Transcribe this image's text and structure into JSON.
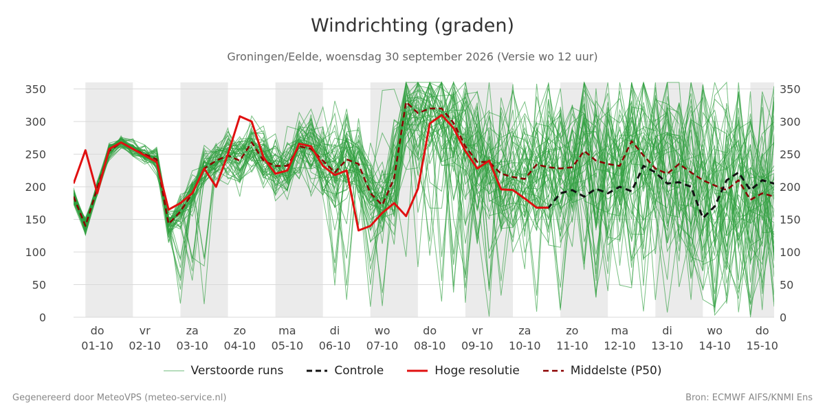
{
  "title": "Windrichting (graden)",
  "subtitle": "Groningen/Eelde, woensdag 30 september 2026 (Versie wo 12 uur)",
  "footer": {
    "left": "Gegenereerd door MeteoVPS (meteo-service.nl)",
    "right": "Bron: ECMWF AIFS/KNMI Ens"
  },
  "colors": {
    "members": "#2e9e3e",
    "control": "#111111",
    "hres": "#e01010",
    "median": "#8b0000",
    "weekend_band": "#ebebeb",
    "grid": "#d9d9d9"
  },
  "chart_data": {
    "type": "line",
    "x_unit": "days since start of 01-10 2026 (00 UTC)",
    "xlim": [
      -0.25,
      14.5
    ],
    "ylim": [
      0,
      360
    ],
    "yticks": [
      0,
      50,
      100,
      150,
      200,
      250,
      300,
      350
    ],
    "grid": true,
    "x_ticks": [
      {
        "day": "do",
        "date": "01-10"
      },
      {
        "day": "vr",
        "date": "02-10"
      },
      {
        "day": "za",
        "date": "03-10"
      },
      {
        "day": "zo",
        "date": "04-10"
      },
      {
        "day": "ma",
        "date": "05-10"
      },
      {
        "day": "di",
        "date": "06-10"
      },
      {
        "day": "wo",
        "date": "07-10"
      },
      {
        "day": "do",
        "date": "08-10"
      },
      {
        "day": "vr",
        "date": "09-10"
      },
      {
        "day": "za",
        "date": "10-10"
      },
      {
        "day": "zo",
        "date": "11-10"
      },
      {
        "day": "ma",
        "date": "12-10"
      },
      {
        "day": "di",
        "date": "13-10"
      },
      {
        "day": "wo",
        "date": "14-10"
      },
      {
        "day": "do",
        "date": "15-10"
      }
    ],
    "legend": [
      "Verstoorde runs",
      "Controle",
      "Hoge resolutie",
      "Middelste (P50)"
    ],
    "series": [
      {
        "name": "Hoge resolutie",
        "x": [
          -0.25,
          0,
          0.25,
          0.5,
          0.75,
          1,
          1.25,
          1.5,
          1.75,
          2,
          2.25,
          2.5,
          2.75,
          3,
          3.25,
          3.5,
          3.75,
          4,
          4.25,
          4.5,
          4.75,
          5,
          5.25,
          5.5,
          5.75,
          6,
          6.25,
          6.5,
          6.75,
          7,
          7.25,
          7.5,
          7.75,
          8,
          8.25,
          8.5,
          8.75,
          9,
          9.25,
          9.5,
          9.75
        ],
        "y": [
          205,
          256,
          190,
          258,
          268,
          258,
          248,
          238,
          165,
          175,
          190,
          228,
          200,
          250,
          308,
          300,
          245,
          220,
          225,
          266,
          262,
          232,
          218,
          225,
          133,
          140,
          160,
          175,
          155,
          197,
          297,
          310,
          290,
          255,
          228,
          240,
          196,
          195,
          182,
          168,
          168
        ]
      },
      {
        "name": "Controle",
        "x": [
          9.5,
          9.75,
          10,
          10.25,
          10.5,
          10.75,
          11,
          11.25,
          11.5,
          11.75,
          12,
          12.25,
          12.5,
          12.75,
          13,
          13.25,
          13.5,
          13.75,
          14,
          14.25,
          14.5
        ],
        "y": [
          168,
          168,
          190,
          195,
          185,
          197,
          190,
          200,
          193,
          232,
          222,
          205,
          207,
          200,
          152,
          170,
          210,
          222,
          195,
          210,
          205
        ]
      },
      {
        "name": "Middelste (P50)",
        "x": [
          -0.25,
          0,
          0.25,
          0.5,
          0.75,
          1,
          1.25,
          1.5,
          1.75,
          2,
          2.25,
          2.5,
          2.75,
          3,
          3.25,
          3.5,
          3.75,
          4,
          4.25,
          4.5,
          4.75,
          5,
          5.25,
          5.5,
          5.75,
          6,
          6.25,
          6.5,
          6.75,
          7,
          7.25,
          7.5,
          7.75,
          8,
          8.25,
          8.5,
          8.75,
          9,
          9.25,
          9.5,
          9.75,
          10,
          10.25,
          10.5,
          10.75,
          11,
          11.25,
          11.5,
          11.75,
          12,
          12.25,
          12.5,
          12.75,
          13,
          13.25,
          13.5,
          13.75,
          14,
          14.25,
          14.5
        ],
        "y": [
          185,
          140,
          198,
          255,
          268,
          258,
          250,
          242,
          143,
          162,
          190,
          228,
          240,
          248,
          240,
          268,
          240,
          232,
          232,
          262,
          258,
          240,
          222,
          242,
          235,
          190,
          172,
          213,
          330,
          313,
          320,
          320,
          298,
          262,
          238,
          238,
          220,
          215,
          212,
          234,
          230,
          228,
          230,
          255,
          240,
          235,
          232,
          270,
          248,
          228,
          220,
          235,
          222,
          210,
          202,
          195,
          210,
          180,
          190,
          185
        ]
      },
      {
        "name": "Verstoorde runs",
        "member_count": 50,
        "note": "50 ensemble members plotted as thin green lines"
      }
    ]
  }
}
